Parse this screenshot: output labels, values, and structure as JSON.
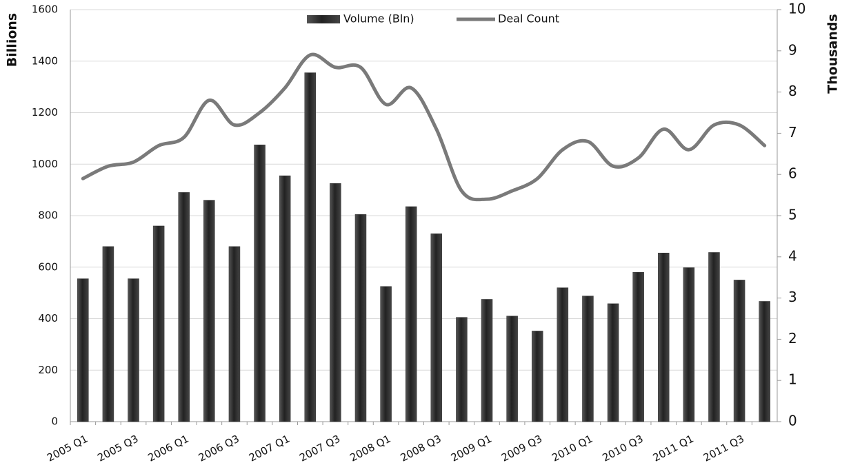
{
  "chart_data": {
    "type": "bar_line",
    "y_label": "Billions",
    "y2_label": "Thousands",
    "categories": [
      "2005 Q1",
      null,
      "2005 Q3",
      null,
      "2006 Q1",
      null,
      "2006 Q3",
      null,
      "2007 Q1",
      null,
      "2007 Q3",
      null,
      "2008 Q1",
      null,
      "2008 Q3",
      null,
      "2009 Q1",
      null,
      "2009 Q3",
      null,
      "2010 Q1",
      null,
      "2010 Q3",
      null,
      "2011 Q1",
      null,
      "2011 Q3",
      null
    ],
    "series": [
      {
        "name": "Volume (Bln)",
        "type": "bar",
        "color": "#333333",
        "axis": "y",
        "values": [
          555,
          680,
          555,
          760,
          890,
          860,
          680,
          1075,
          955,
          1355,
          925,
          805,
          525,
          835,
          730,
          405,
          475,
          410,
          352,
          520,
          488,
          458,
          580,
          655,
          598,
          657,
          550,
          467
        ]
      },
      {
        "name": "Deal Count",
        "type": "line",
        "color": "#7a7a7a",
        "axis": "y2",
        "values": [
          5.9,
          6.2,
          6.3,
          6.7,
          6.9,
          7.8,
          7.2,
          7.5,
          8.1,
          8.9,
          8.6,
          8.6,
          7.7,
          8.1,
          7.1,
          5.6,
          5.4,
          5.6,
          5.9,
          6.6,
          6.8,
          6.2,
          6.4,
          7.1,
          6.6,
          7.2,
          7.2,
          6.7
        ]
      }
    ],
    "ylim": [
      0,
      1600
    ],
    "yticks": [
      0,
      200,
      400,
      600,
      800,
      1000,
      1200,
      1400,
      1600
    ],
    "y2lim": [
      0,
      10
    ],
    "y2ticks": [
      0,
      1,
      2,
      3,
      4,
      5,
      6,
      7,
      8,
      9,
      10
    ],
    "grid": true,
    "legend": "top"
  }
}
